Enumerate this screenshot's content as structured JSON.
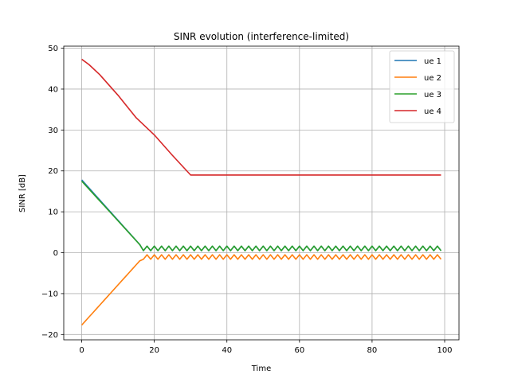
{
  "chart_data": {
    "type": "line",
    "title": "SINR evolution (interference-limited)",
    "xlabel": "Time",
    "ylabel": "SINR [dB]",
    "xlim": [
      -4.95,
      103.95
    ],
    "ylim": [
      -21.3,
      50.5
    ],
    "xticks": [
      0,
      20,
      40,
      60,
      80,
      100
    ],
    "xtick_labels": [
      "0",
      "20",
      "40",
      "60",
      "80",
      "100"
    ],
    "yticks": [
      -20,
      -10,
      0,
      10,
      20,
      30,
      40,
      50
    ],
    "ytick_labels": [
      "−20",
      "−10",
      "0",
      "10",
      "20",
      "30",
      "40",
      "50"
    ],
    "grid": true,
    "legend_position": "top-right",
    "series": [
      {
        "name": "ue 1",
        "color": "#1f77b4",
        "generator": "converge_oscillate",
        "start": 17.8,
        "end": 1.0,
        "converge_at": 17,
        "osc_amplitude": 0.55,
        "osc_center": 1.05,
        "n_points": 100
      },
      {
        "name": "ue 2",
        "color": "#ff7f0e",
        "generator": "converge_oscillate",
        "start": -17.7,
        "end": -1.0,
        "converge_at": 17,
        "osc_amplitude": 0.55,
        "osc_center": -1.05,
        "n_points": 100
      },
      {
        "name": "ue 3",
        "color": "#2ca02c",
        "generator": "converge_oscillate",
        "start": 17.5,
        "end": 1.0,
        "converge_at": 17,
        "osc_amplitude": 0.55,
        "osc_center": 1.05,
        "n_points": 100
      },
      {
        "name": "ue 4",
        "color": "#d62728",
        "generator": "curve_then_flat",
        "points": [
          [
            0,
            47.3
          ],
          [
            2,
            46.0
          ],
          [
            5,
            43.5
          ],
          [
            10,
            38.5
          ],
          [
            15,
            33.0
          ],
          [
            20,
            28.8
          ],
          [
            25,
            23.8
          ],
          [
            30,
            19.0
          ],
          [
            99,
            19.0
          ]
        ]
      }
    ]
  }
}
